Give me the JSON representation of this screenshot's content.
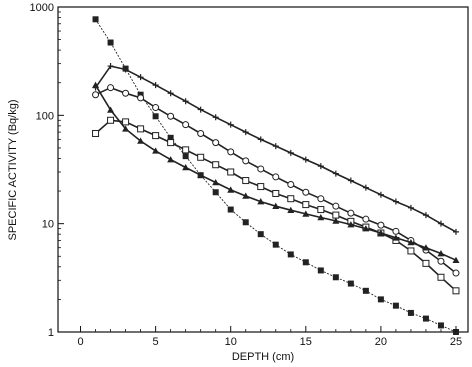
{
  "chart_data": {
    "type": "line",
    "title": "",
    "xlabel": "DEPTH (cm)",
    "ylabel": "SPECIFIC ACTIVITY (Bq/kg)",
    "xlim": [
      -1.5,
      25.8
    ],
    "ylim": [
      1,
      1000
    ],
    "yscale": "log",
    "grid": false,
    "x_ticks": [
      0,
      5,
      10,
      15,
      20,
      25
    ],
    "x_tick_labels": [
      "0",
      "5",
      "10",
      "15",
      "20",
      "25"
    ],
    "y_ticks": [
      1,
      10,
      100,
      1000
    ],
    "y_tick_labels": [
      "1",
      "10",
      "100",
      "1000"
    ],
    "series": [
      {
        "marker": "plus",
        "color": "#222222",
        "points": [
          [
            1,
            180
          ],
          [
            2,
            285
          ],
          [
            3,
            265
          ],
          [
            4,
            225
          ],
          [
            5,
            190
          ],
          [
            6,
            160
          ],
          [
            7,
            135
          ],
          [
            8,
            113
          ],
          [
            9,
            96
          ],
          [
            10,
            82
          ],
          [
            11,
            70
          ],
          [
            12,
            60
          ],
          [
            13,
            52
          ],
          [
            14,
            45
          ],
          [
            15,
            39
          ],
          [
            16,
            34
          ],
          [
            17,
            29
          ],
          [
            18,
            25
          ],
          [
            19,
            21.5
          ],
          [
            20,
            18.5
          ],
          [
            21,
            16
          ],
          [
            22,
            14
          ],
          [
            23,
            12
          ],
          [
            24,
            10
          ],
          [
            25,
            8.4
          ]
        ]
      },
      {
        "marker": "filled-square",
        "color": "#222222",
        "points": [
          [
            1,
            770
          ],
          [
            2,
            470
          ],
          [
            3,
            270
          ],
          [
            4,
            155
          ],
          [
            5,
            98
          ],
          [
            6,
            62
          ],
          [
            7,
            42
          ],
          [
            8,
            28
          ],
          [
            9,
            19.5
          ],
          [
            10,
            13.5
          ],
          [
            11,
            10.3
          ],
          [
            12,
            8
          ],
          [
            13,
            6.4
          ],
          [
            14,
            5.2
          ],
          [
            15,
            4.4
          ],
          [
            16,
            3.7
          ],
          [
            17,
            3.2
          ],
          [
            18,
            2.8
          ],
          [
            19,
            2.4
          ],
          [
            20,
            2.0
          ],
          [
            21,
            1.75
          ],
          [
            22,
            1.5
          ],
          [
            23,
            1.33
          ],
          [
            24,
            1.15
          ],
          [
            25,
            1.0
          ]
        ]
      },
      {
        "marker": "open-circle",
        "color": "#222222",
        "points": [
          [
            1,
            155
          ],
          [
            2,
            180
          ],
          [
            3,
            160
          ],
          [
            4,
            145
          ],
          [
            5,
            118
          ],
          [
            6,
            98
          ],
          [
            7,
            82
          ],
          [
            8,
            68
          ],
          [
            9,
            56
          ],
          [
            10,
            46
          ],
          [
            11,
            38
          ],
          [
            12,
            32
          ],
          [
            13,
            27
          ],
          [
            14,
            23
          ],
          [
            15,
            19.5
          ],
          [
            16,
            17
          ],
          [
            17,
            14.5
          ],
          [
            18,
            12.5
          ],
          [
            19,
            11
          ],
          [
            20,
            9.7
          ],
          [
            21,
            8.5
          ],
          [
            22,
            7
          ],
          [
            23,
            5.7
          ],
          [
            24,
            4.5
          ],
          [
            25,
            3.5
          ]
        ]
      },
      {
        "marker": "open-square",
        "color": "#222222",
        "points": [
          [
            1,
            68
          ],
          [
            2,
            90
          ],
          [
            3,
            87
          ],
          [
            4,
            75
          ],
          [
            5,
            65
          ],
          [
            6,
            56
          ],
          [
            7,
            48
          ],
          [
            8,
            41
          ],
          [
            9,
            35
          ],
          [
            10,
            30
          ],
          [
            11,
            25
          ],
          [
            12,
            22
          ],
          [
            13,
            19
          ],
          [
            14,
            17
          ],
          [
            15,
            15
          ],
          [
            16,
            13.5
          ],
          [
            17,
            12
          ],
          [
            18,
            10.5
          ],
          [
            19,
            9.3
          ],
          [
            20,
            8.2
          ],
          [
            21,
            7
          ],
          [
            22,
            5.6
          ],
          [
            23,
            4.3
          ],
          [
            24,
            3.2
          ],
          [
            25,
            2.4
          ]
        ]
      },
      {
        "marker": "filled-triangle",
        "color": "#222222",
        "points": [
          [
            1,
            190
          ],
          [
            2,
            112
          ],
          [
            3,
            75
          ],
          [
            4,
            58
          ],
          [
            5,
            47
          ],
          [
            6,
            39
          ],
          [
            7,
            33
          ],
          [
            8,
            28
          ],
          [
            9,
            24
          ],
          [
            10,
            20.5
          ],
          [
            11,
            18
          ],
          [
            12,
            16
          ],
          [
            13,
            14.5
          ],
          [
            14,
            13.3
          ],
          [
            15,
            12.3
          ],
          [
            16,
            11.4
          ],
          [
            17,
            10.6
          ],
          [
            18,
            9.8
          ],
          [
            19,
            9
          ],
          [
            20,
            8.2
          ],
          [
            21,
            7.4
          ],
          [
            22,
            6.7
          ],
          [
            23,
            6
          ],
          [
            24,
            5.3
          ],
          [
            25,
            4.6
          ]
        ]
      }
    ]
  }
}
